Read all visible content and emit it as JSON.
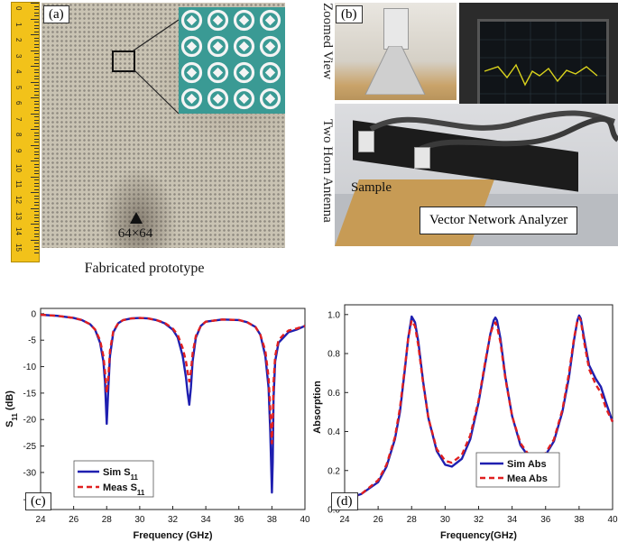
{
  "panel_a": {
    "label": "(a)",
    "size_label": "64×64",
    "caption": "Fabricated prototype",
    "ruler_numbers": [
      "0",
      "1",
      "2",
      "3",
      "4",
      "5",
      "6",
      "7",
      "8",
      "9",
      "10",
      "11",
      "12",
      "13",
      "14",
      "15"
    ]
  },
  "panel_b": {
    "label": "(b)",
    "zoomed_view": "Zoomed View",
    "two_horn": "Two Horn Antenna",
    "sample": "Sample",
    "vna": "Vector Network Analyzer"
  },
  "panel_c_label": "(c)",
  "panel_d_label": "(d)",
  "colors": {
    "sim": "#1f1fb0",
    "meas": "#e02020"
  },
  "chart_data": [
    {
      "type": "line",
      "panel": "(c)",
      "xlabel": "Frequency (GHz)",
      "ylabel": "S11 (dB)",
      "xlim": [
        24,
        40
      ],
      "ylim": [
        -37,
        1
      ],
      "xticks": [
        24,
        26,
        28,
        30,
        32,
        34,
        36,
        38,
        40
      ],
      "yticks": [
        0,
        -5,
        -10,
        -15,
        -20,
        -25,
        -30,
        -35
      ],
      "legend_position": "bottom-left",
      "series": [
        {
          "name": "Sim S11",
          "style": "solid",
          "x": [
            24,
            25,
            26,
            26.5,
            27,
            27.3,
            27.6,
            27.8,
            27.9,
            28.0,
            28.1,
            28.2,
            28.4,
            28.7,
            29,
            29.5,
            30,
            30.5,
            31,
            31.5,
            32,
            32.3,
            32.6,
            32.8,
            32.9,
            33.0,
            33.1,
            33.2,
            33.4,
            33.7,
            34,
            35,
            36,
            36.5,
            37,
            37.3,
            37.6,
            37.8,
            37.9,
            38.0,
            38.05,
            38.1,
            38.2,
            38.4,
            38.7,
            39,
            39.5,
            40
          ],
          "y": [
            -0.2,
            -0.4,
            -0.8,
            -1.2,
            -2,
            -3,
            -5.5,
            -9,
            -13,
            -20.8,
            -14,
            -8,
            -3.5,
            -1.8,
            -1.2,
            -0.9,
            -0.8,
            -0.9,
            -1.2,
            -1.8,
            -3,
            -4.5,
            -8,
            -12,
            -15,
            -17.2,
            -14,
            -9,
            -4.5,
            -2.3,
            -1.5,
            -1.1,
            -1.2,
            -1.6,
            -2.5,
            -4,
            -8,
            -14,
            -22,
            -33.8,
            -28,
            -16,
            -9,
            -5.5,
            -4.5,
            -3.5,
            -3,
            -2.3
          ]
        },
        {
          "name": "Meas S11",
          "style": "dashed",
          "x": [
            24,
            25,
            26,
            26.5,
            27,
            27.3,
            27.6,
            27.8,
            27.9,
            28.0,
            28.1,
            28.2,
            28.4,
            28.7,
            29,
            29.5,
            30,
            30.5,
            31,
            31.5,
            32,
            32.3,
            32.6,
            32.8,
            32.9,
            33.0,
            33.1,
            33.2,
            33.4,
            33.7,
            34,
            35,
            36,
            36.5,
            37,
            37.3,
            37.6,
            37.8,
            37.9,
            38.0,
            38.05,
            38.1,
            38.2,
            38.4,
            38.7,
            39,
            39.5,
            40
          ],
          "y": [
            -0.2,
            -0.4,
            -0.8,
            -1.2,
            -2,
            -3,
            -5,
            -8,
            -11,
            -15,
            -12,
            -7,
            -3.3,
            -1.8,
            -1.2,
            -0.9,
            -0.8,
            -0.9,
            -1.2,
            -1.7,
            -2.8,
            -4,
            -6.5,
            -9,
            -11,
            -12.8,
            -11,
            -7.5,
            -4.2,
            -2.3,
            -1.5,
            -1.1,
            -1.2,
            -1.6,
            -2.5,
            -4,
            -7,
            -12,
            -18,
            -24.5,
            -20,
            -13,
            -8,
            -5,
            -4,
            -3.2,
            -2.8,
            -2.3
          ]
        }
      ]
    },
    {
      "type": "line",
      "panel": "(d)",
      "xlabel": "Frequency(GHz)",
      "ylabel": "Absorption",
      "xlim": [
        24,
        40
      ],
      "ylim": [
        0,
        1.05
      ],
      "xticks": [
        24,
        26,
        28,
        30,
        32,
        34,
        36,
        38,
        40
      ],
      "yticks": [
        0.0,
        0.2,
        0.4,
        0.6,
        0.8,
        1.0
      ],
      "legend_position": "bottom-right",
      "series": [
        {
          "name": "Sim Abs",
          "style": "solid",
          "x": [
            24,
            25,
            26,
            26.5,
            27,
            27.3,
            27.6,
            27.8,
            28,
            28.2,
            28.4,
            28.7,
            29,
            29.5,
            30,
            30.4,
            31,
            31.5,
            32,
            32.4,
            32.7,
            32.9,
            33,
            33.1,
            33.3,
            33.6,
            34,
            34.5,
            35,
            35.5,
            36,
            36.5,
            37,
            37.4,
            37.7,
            37.9,
            38,
            38.1,
            38.3,
            38.6,
            39,
            39.3,
            39.6,
            40
          ],
          "y": [
            0.05,
            0.08,
            0.14,
            0.22,
            0.36,
            0.5,
            0.72,
            0.88,
            0.99,
            0.96,
            0.86,
            0.65,
            0.47,
            0.3,
            0.23,
            0.22,
            0.26,
            0.36,
            0.55,
            0.75,
            0.9,
            0.97,
            0.985,
            0.97,
            0.88,
            0.68,
            0.48,
            0.33,
            0.27,
            0.26,
            0.28,
            0.35,
            0.5,
            0.68,
            0.87,
            0.97,
            0.995,
            0.98,
            0.88,
            0.74,
            0.67,
            0.63,
            0.55,
            0.45
          ]
        },
        {
          "name": "Mea Abs",
          "style": "dashed",
          "x": [
            24,
            25,
            26,
            26.5,
            27,
            27.3,
            27.6,
            27.8,
            28,
            28.2,
            28.4,
            28.7,
            29,
            29.5,
            30,
            30.4,
            31,
            31.5,
            32,
            32.4,
            32.7,
            32.9,
            33,
            33.1,
            33.3,
            33.6,
            34,
            34.5,
            35,
            35.5,
            36,
            36.5,
            37,
            37.4,
            37.7,
            37.9,
            38,
            38.1,
            38.3,
            38.6,
            39,
            39.3,
            39.6,
            40
          ],
          "y": [
            0.05,
            0.08,
            0.15,
            0.23,
            0.37,
            0.52,
            0.73,
            0.88,
            0.97,
            0.94,
            0.84,
            0.64,
            0.47,
            0.31,
            0.25,
            0.24,
            0.28,
            0.38,
            0.56,
            0.76,
            0.9,
            0.95,
            0.96,
            0.94,
            0.86,
            0.67,
            0.48,
            0.34,
            0.28,
            0.27,
            0.29,
            0.36,
            0.51,
            0.7,
            0.88,
            0.97,
            0.985,
            0.97,
            0.86,
            0.72,
            0.64,
            0.6,
            0.52,
            0.45
          ]
        }
      ]
    }
  ]
}
